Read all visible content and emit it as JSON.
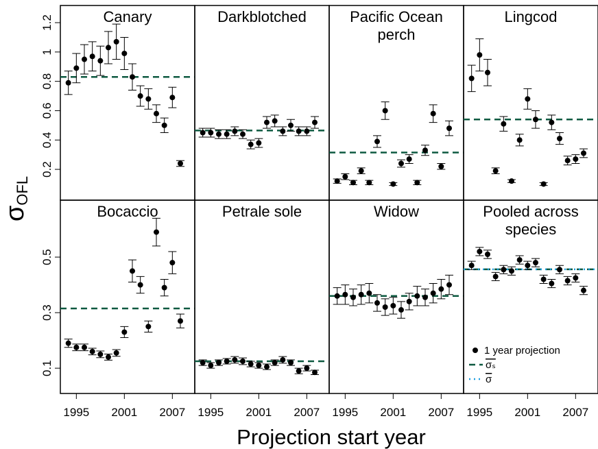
{
  "x_label": "Projection start year",
  "y_label": {
    "symbol": "σ",
    "subscript": "OFL"
  },
  "chart_data": [
    {
      "type": "scatter",
      "title": "Canary",
      "x": [
        1994,
        1995,
        1996,
        1997,
        1998,
        1999,
        2000,
        2001,
        2002,
        2003,
        2004,
        2005,
        2006,
        2007,
        2008
      ],
      "series": [
        {
          "color": "#000000",
          "values": [
            0.79,
            0.89,
            0.95,
            0.97,
            0.94,
            1.03,
            1.07,
            0.99,
            0.83,
            0.7,
            0.68,
            0.58,
            0.5,
            0.69,
            0.24
          ],
          "errors": [
            0.08,
            0.1,
            0.1,
            0.1,
            0.1,
            0.11,
            0.12,
            0.11,
            0.09,
            0.07,
            0.07,
            0.06,
            0.05,
            0.07,
            0.02
          ]
        }
      ],
      "hlines": [
        {
          "value": 0.83,
          "color": "#0d5940",
          "style": "dashed"
        }
      ],
      "xlim": [
        1993,
        2009.8
      ],
      "ylim": [
        -0.01,
        1.317
      ],
      "yticks": [
        0.2,
        0.4,
        0.6,
        0.8,
        1,
        1.2
      ]
    },
    {
      "type": "scatter",
      "title": "Darkblotched",
      "x": [
        1994,
        1995,
        1996,
        1997,
        1998,
        1999,
        2000,
        2001,
        2002,
        2003,
        2004,
        2005,
        2006,
        2007,
        2008
      ],
      "series": [
        {
          "color": "#000000",
          "values": [
            0.45,
            0.45,
            0.44,
            0.44,
            0.46,
            0.44,
            0.37,
            0.38,
            0.52,
            0.53,
            0.46,
            0.5,
            0.46,
            0.46,
            0.52
          ],
          "errors": [
            0.03,
            0.03,
            0.03,
            0.03,
            0.03,
            0.03,
            0.03,
            0.03,
            0.04,
            0.04,
            0.03,
            0.04,
            0.03,
            0.03,
            0.04
          ]
        }
      ],
      "hlines": [
        {
          "value": 0.465,
          "color": "#0d5940",
          "style": "dashed"
        }
      ],
      "xlim": [
        1993,
        2009.8
      ],
      "ylim": [
        -0.01,
        1.317
      ]
    },
    {
      "type": "scatter",
      "title": [
        "Pacific Ocean",
        "perch"
      ],
      "x": [
        1994,
        1995,
        1996,
        1997,
        1998,
        1999,
        2000,
        2001,
        2002,
        2003,
        2004,
        2005,
        2006,
        2007,
        2008
      ],
      "series": [
        {
          "color": "#000000",
          "values": [
            0.12,
            0.15,
            0.11,
            0.19,
            0.11,
            0.39,
            0.6,
            0.1,
            0.24,
            0.27,
            0.11,
            0.33,
            0.58,
            0.22,
            0.48
          ],
          "errors": [
            0.015,
            0.02,
            0.015,
            0.02,
            0.015,
            0.04,
            0.06,
            0.01,
            0.025,
            0.03,
            0.015,
            0.035,
            0.06,
            0.02,
            0.05
          ]
        }
      ],
      "hlines": [
        {
          "value": 0.315,
          "color": "#0d5940",
          "style": "dashed"
        }
      ],
      "xlim": [
        1993,
        2009.8
      ],
      "ylim": [
        -0.01,
        1.317
      ]
    },
    {
      "type": "scatter",
      "title": "Lingcod",
      "x": [
        1994,
        1995,
        1996,
        1997,
        1998,
        1999,
        2000,
        2001,
        2002,
        2003,
        2004,
        2005,
        2006,
        2007,
        2008
      ],
      "series": [
        {
          "color": "#000000",
          "values": [
            0.82,
            0.98,
            0.86,
            0.19,
            0.51,
            0.12,
            0.4,
            0.68,
            0.54,
            0.1,
            0.52,
            0.41,
            0.26,
            0.27,
            0.31
          ],
          "errors": [
            0.09,
            0.11,
            0.09,
            0.02,
            0.05,
            0.01,
            0.04,
            0.07,
            0.06,
            0.01,
            0.05,
            0.04,
            0.03,
            0.03,
            0.03
          ]
        }
      ],
      "hlines": [
        {
          "value": 0.54,
          "color": "#0d5940",
          "style": "dashed"
        }
      ],
      "xlim": [
        1993,
        2009.8
      ],
      "ylim": [
        -0.01,
        1.317
      ]
    },
    {
      "type": "scatter",
      "title": "Bocaccio",
      "x": [
        1994,
        1995,
        1996,
        1997,
        1998,
        1999,
        2000,
        2001,
        2002,
        2003,
        2004,
        2005,
        2006,
        2007,
        2008
      ],
      "series": [
        {
          "color": "#000000",
          "values": [
            0.19,
            0.175,
            0.175,
            0.16,
            0.15,
            0.14,
            0.155,
            0.23,
            0.45,
            0.4,
            0.25,
            0.59,
            0.39,
            0.48,
            0.27
          ],
          "errors": [
            0.015,
            0.012,
            0.012,
            0.012,
            0.012,
            0.011,
            0.012,
            0.02,
            0.04,
            0.03,
            0.02,
            0.05,
            0.03,
            0.04,
            0.025
          ]
        }
      ],
      "hlines": [
        {
          "value": 0.315,
          "color": "#0d5940",
          "style": "dashed"
        }
      ],
      "xlim": [
        1993,
        2009.8
      ],
      "ylim": [
        0.009,
        0.705
      ],
      "yticks": [
        0.1,
        0.3,
        0.5
      ],
      "xticks": [
        1995,
        2001,
        2007
      ]
    },
    {
      "type": "scatter",
      "title": "Petrale sole",
      "x": [
        1994,
        1995,
        1996,
        1997,
        1998,
        1999,
        2000,
        2001,
        2002,
        2003,
        2004,
        2005,
        2006,
        2007,
        2008
      ],
      "series": [
        {
          "color": "#000000",
          "values": [
            0.12,
            0.11,
            0.12,
            0.125,
            0.13,
            0.125,
            0.115,
            0.11,
            0.105,
            0.12,
            0.13,
            0.12,
            0.09,
            0.1,
            0.085
          ],
          "errors": [
            0.01,
            0.01,
            0.01,
            0.01,
            0.012,
            0.012,
            0.01,
            0.01,
            0.01,
            0.01,
            0.012,
            0.01,
            0.01,
            0.01,
            0.008
          ]
        }
      ],
      "hlines": [
        {
          "value": 0.125,
          "color": "#0d5940",
          "style": "dashed"
        }
      ],
      "xlim": [
        1993,
        2009.8
      ],
      "ylim": [
        0.009,
        0.705
      ],
      "xticks": [
        1995,
        2001,
        2007
      ]
    },
    {
      "type": "scatter",
      "title": "Widow",
      "x": [
        1994,
        1995,
        1996,
        1997,
        1998,
        1999,
        2000,
        2001,
        2002,
        2003,
        2004,
        2005,
        2006,
        2007,
        2008
      ],
      "series": [
        {
          "color": "#000000",
          "values": [
            0.36,
            0.365,
            0.355,
            0.365,
            0.37,
            0.335,
            0.32,
            0.325,
            0.31,
            0.34,
            0.36,
            0.355,
            0.37,
            0.385,
            0.4
          ],
          "errors": [
            0.03,
            0.035,
            0.03,
            0.035,
            0.035,
            0.03,
            0.03,
            0.03,
            0.03,
            0.03,
            0.035,
            0.03,
            0.035,
            0.035,
            0.035
          ]
        }
      ],
      "hlines": [
        {
          "value": 0.36,
          "color": "#0d5940",
          "style": "dashed"
        }
      ],
      "xlim": [
        1993,
        2009.8
      ],
      "ylim": [
        0.009,
        0.705
      ],
      "xticks": [
        1995,
        2001,
        2007
      ]
    },
    {
      "type": "scatter",
      "title": [
        "Pooled across",
        "species"
      ],
      "x": [
        1994,
        1995,
        1996,
        1997,
        1998,
        1999,
        2000,
        2001,
        2002,
        2003,
        2004,
        2005,
        2006,
        2007,
        2008
      ],
      "series": [
        {
          "name": "1 year projection",
          "color": "#000000",
          "values": [
            0.47,
            0.52,
            0.51,
            0.43,
            0.455,
            0.45,
            0.49,
            0.47,
            0.48,
            0.42,
            0.405,
            0.455,
            0.415,
            0.425,
            0.38
          ],
          "errors": [
            0.015,
            0.015,
            0.015,
            0.015,
            0.015,
            0.015,
            0.015,
            0.015,
            0.015,
            0.015,
            0.015,
            0.015,
            0.015,
            0.015,
            0.015
          ]
        }
      ],
      "hlines": [
        {
          "name": "σₛ",
          "value": 0.456,
          "color": "#0d5940",
          "style": "dashed"
        },
        {
          "name": "σ",
          "value": 0.456,
          "color": "#1a9ee0",
          "style": "dotted"
        }
      ],
      "legend": "bottomright",
      "xlim": [
        1993,
        2009.8
      ],
      "ylim": [
        0.009,
        0.705
      ],
      "xticks": [
        1995,
        2001,
        2007
      ]
    }
  ]
}
